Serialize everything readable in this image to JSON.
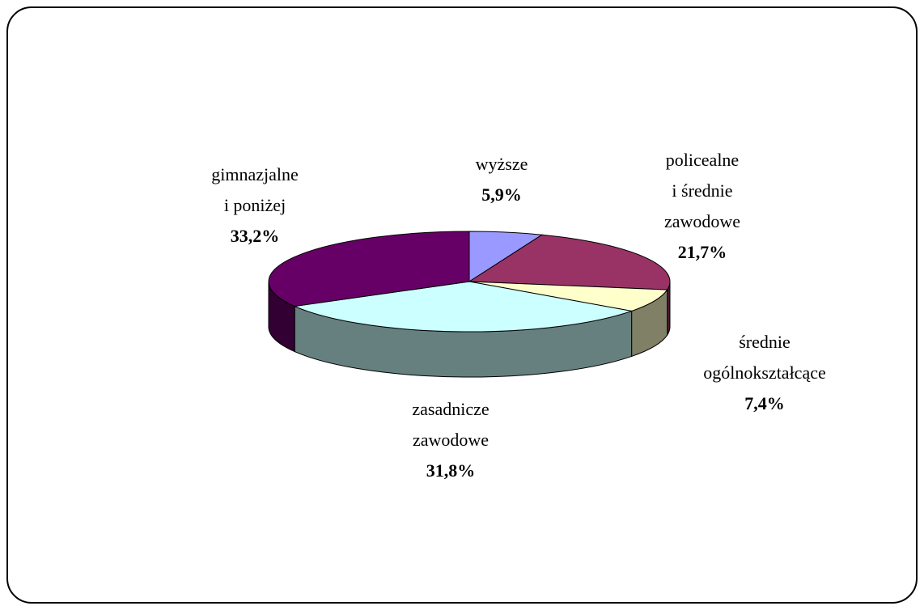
{
  "chart_data": {
    "type": "pie3d",
    "categories": [
      [
        "wyższe"
      ],
      [
        "policealne",
        "i średnie",
        "zawodowe"
      ],
      [
        "średnie",
        "ogólnokształcące"
      ],
      [
        "zasadnicze",
        "zawodowe"
      ],
      [
        "gimnazjalne",
        "i poniżej"
      ]
    ],
    "values": [
      5.9,
      21.7,
      7.4,
      31.8,
      33.2
    ],
    "value_labels": [
      "5,9%",
      "21,7%",
      "7,4%",
      "31,8%",
      "33,2%"
    ],
    "colors": [
      "#9999ff",
      "#993366",
      "#ffffcc",
      "#ccffff",
      "#660066"
    ]
  }
}
